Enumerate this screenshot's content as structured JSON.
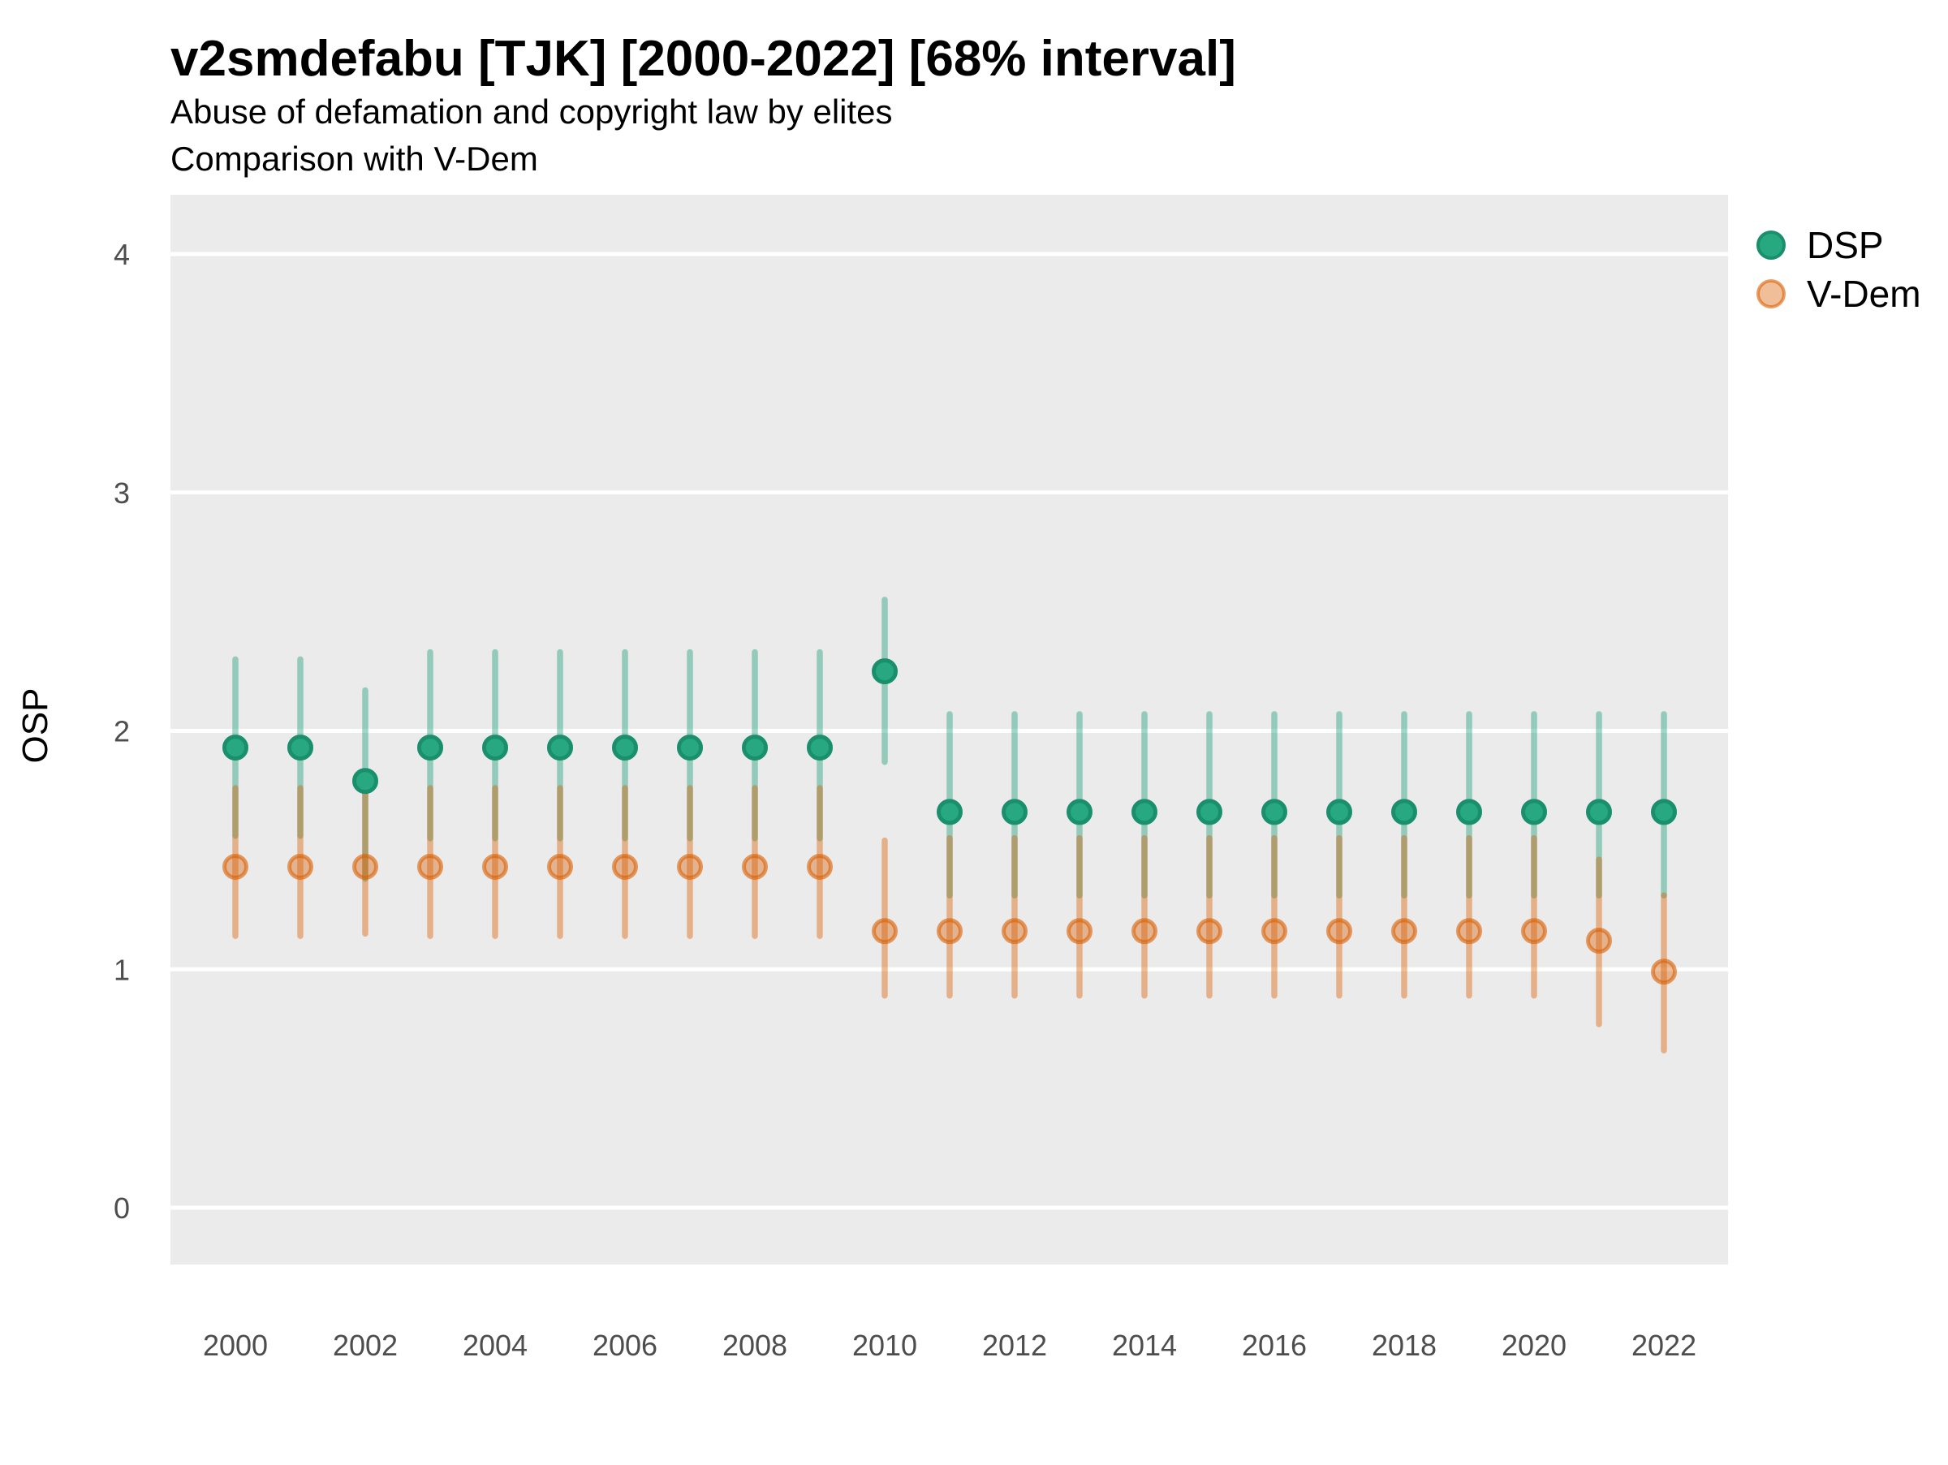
{
  "header": {
    "title": "v2smdefabu [TJK] [2000-2022] [68% interval]",
    "subtitle_line1": "Abuse of defamation and copyright law by elites",
    "subtitle_line2": "Comparison with V-Dem"
  },
  "colors": {
    "panel_background": "#EBEBEB",
    "gridline": "#FFFFFF",
    "dsp_base": "#1B9E77",
    "vdem_base": "#D95F02"
  },
  "styles": {
    "dsp": {
      "bar": "rgba(27,158,119,0.42)",
      "point_fill": "#27a87e",
      "point_stroke": "#1a8f6b"
    },
    "vdem": {
      "bar": "rgba(217,95,2,0.42)",
      "point_fill": "rgba(217,95,2,0.40)",
      "point_stroke": "rgba(217,95,2,0.60)"
    }
  },
  "legend": {
    "items": [
      {
        "label": "DSP",
        "series": "dsp"
      },
      {
        "label": "V-Dem",
        "series": "vdem"
      }
    ]
  },
  "y_axis": {
    "label": "OSP",
    "ticks": [
      4,
      3,
      2,
      1,
      0
    ]
  },
  "x_axis": {
    "ticks": [
      2000,
      2002,
      2004,
      2006,
      2008,
      2010,
      2012,
      2014,
      2016,
      2018,
      2020,
      2022
    ]
  },
  "chart_data": {
    "type": "scatter",
    "title": "v2smdefabu [TJK] [2000-2022] [68% interval]",
    "subtitle": "Abuse of defamation and copyright law by elites — Comparison with V-Dem",
    "xlabel": "",
    "ylabel": "OSP",
    "xlim": [
      1999,
      2023
    ],
    "ylim": [
      -0.24,
      4.25
    ],
    "grid": "horizontal-major-only",
    "legend_position": "right",
    "error_interval": "68%",
    "series": [
      {
        "name": "DSP",
        "key": "dsp",
        "color": "#1B9E77",
        "points": [
          {
            "year": 2000,
            "value": 1.93,
            "lo": 1.56,
            "hi": 2.3
          },
          {
            "year": 2001,
            "value": 1.93,
            "lo": 1.56,
            "hi": 2.3
          },
          {
            "year": 2002,
            "value": 1.79,
            "lo": 1.38,
            "hi": 2.17
          },
          {
            "year": 2003,
            "value": 1.93,
            "lo": 1.55,
            "hi": 2.33
          },
          {
            "year": 2004,
            "value": 1.93,
            "lo": 1.55,
            "hi": 2.33
          },
          {
            "year": 2005,
            "value": 1.93,
            "lo": 1.55,
            "hi": 2.33
          },
          {
            "year": 2006,
            "value": 1.93,
            "lo": 1.55,
            "hi": 2.33
          },
          {
            "year": 2007,
            "value": 1.93,
            "lo": 1.55,
            "hi": 2.33
          },
          {
            "year": 2008,
            "value": 1.93,
            "lo": 1.55,
            "hi": 2.33
          },
          {
            "year": 2009,
            "value": 1.93,
            "lo": 1.55,
            "hi": 2.33
          },
          {
            "year": 2010,
            "value": 2.25,
            "lo": 1.87,
            "hi": 2.55
          },
          {
            "year": 2011,
            "value": 1.66,
            "lo": 1.31,
            "hi": 2.07
          },
          {
            "year": 2012,
            "value": 1.66,
            "lo": 1.31,
            "hi": 2.07
          },
          {
            "year": 2013,
            "value": 1.66,
            "lo": 1.31,
            "hi": 2.07
          },
          {
            "year": 2014,
            "value": 1.66,
            "lo": 1.31,
            "hi": 2.07
          },
          {
            "year": 2015,
            "value": 1.66,
            "lo": 1.31,
            "hi": 2.07
          },
          {
            "year": 2016,
            "value": 1.66,
            "lo": 1.31,
            "hi": 2.07
          },
          {
            "year": 2017,
            "value": 1.66,
            "lo": 1.31,
            "hi": 2.07
          },
          {
            "year": 2018,
            "value": 1.66,
            "lo": 1.31,
            "hi": 2.07
          },
          {
            "year": 2019,
            "value": 1.66,
            "lo": 1.31,
            "hi": 2.07
          },
          {
            "year": 2020,
            "value": 1.66,
            "lo": 1.31,
            "hi": 2.07
          },
          {
            "year": 2021,
            "value": 1.66,
            "lo": 1.31,
            "hi": 2.07
          },
          {
            "year": 2022,
            "value": 1.66,
            "lo": 1.31,
            "hi": 2.07
          }
        ]
      },
      {
        "name": "V-Dem",
        "key": "vdem",
        "color": "#D95F02",
        "points": [
          {
            "year": 2000,
            "value": 1.43,
            "lo": 1.14,
            "hi": 1.76
          },
          {
            "year": 2001,
            "value": 1.43,
            "lo": 1.14,
            "hi": 1.76
          },
          {
            "year": 2002,
            "value": 1.43,
            "lo": 1.15,
            "hi": 1.74
          },
          {
            "year": 2003,
            "value": 1.43,
            "lo": 1.14,
            "hi": 1.76
          },
          {
            "year": 2004,
            "value": 1.43,
            "lo": 1.14,
            "hi": 1.76
          },
          {
            "year": 2005,
            "value": 1.43,
            "lo": 1.14,
            "hi": 1.76
          },
          {
            "year": 2006,
            "value": 1.43,
            "lo": 1.14,
            "hi": 1.76
          },
          {
            "year": 2007,
            "value": 1.43,
            "lo": 1.14,
            "hi": 1.76
          },
          {
            "year": 2008,
            "value": 1.43,
            "lo": 1.14,
            "hi": 1.76
          },
          {
            "year": 2009,
            "value": 1.43,
            "lo": 1.14,
            "hi": 1.76
          },
          {
            "year": 2010,
            "value": 1.16,
            "lo": 0.89,
            "hi": 1.54
          },
          {
            "year": 2011,
            "value": 1.16,
            "lo": 0.89,
            "hi": 1.55
          },
          {
            "year": 2012,
            "value": 1.16,
            "lo": 0.89,
            "hi": 1.55
          },
          {
            "year": 2013,
            "value": 1.16,
            "lo": 0.89,
            "hi": 1.55
          },
          {
            "year": 2014,
            "value": 1.16,
            "lo": 0.89,
            "hi": 1.55
          },
          {
            "year": 2015,
            "value": 1.16,
            "lo": 0.89,
            "hi": 1.55
          },
          {
            "year": 2016,
            "value": 1.16,
            "lo": 0.89,
            "hi": 1.55
          },
          {
            "year": 2017,
            "value": 1.16,
            "lo": 0.89,
            "hi": 1.55
          },
          {
            "year": 2018,
            "value": 1.16,
            "lo": 0.89,
            "hi": 1.55
          },
          {
            "year": 2019,
            "value": 1.16,
            "lo": 0.89,
            "hi": 1.55
          },
          {
            "year": 2020,
            "value": 1.16,
            "lo": 0.89,
            "hi": 1.55
          },
          {
            "year": 2021,
            "value": 1.12,
            "lo": 0.77,
            "hi": 1.46
          },
          {
            "year": 2022,
            "value": 0.99,
            "lo": 0.66,
            "hi": 1.31
          }
        ]
      }
    ]
  }
}
